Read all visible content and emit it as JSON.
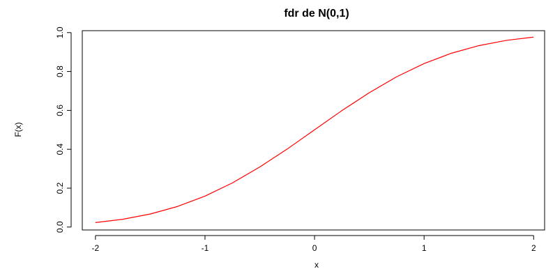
{
  "chart_data": {
    "type": "line",
    "title": "fdr de N(0,1)",
    "xlabel": "x",
    "ylabel": "F(x)",
    "xlim": [
      -2,
      2
    ],
    "ylim": [
      0.0,
      1.0
    ],
    "x_ticks": [
      -2,
      -1,
      0,
      1,
      2
    ],
    "y_ticks": [
      0.0,
      0.2,
      0.4,
      0.6,
      0.8,
      1.0
    ],
    "x_tick_labels": [
      "-2",
      "-1",
      "0",
      "1",
      "2"
    ],
    "y_tick_labels": [
      "0.0",
      "0.2",
      "0.4",
      "0.6",
      "0.8",
      "1.0"
    ],
    "grid": false,
    "colors": {
      "line": "#ff0000",
      "axes": "#000000"
    },
    "series": [
      {
        "x": [
          -2.0,
          -1.75,
          -1.5,
          -1.25,
          -1.0,
          -0.75,
          -0.5,
          -0.25,
          0.0,
          0.25,
          0.5,
          0.75,
          1.0,
          1.25,
          1.5,
          1.75,
          2.0
        ],
        "values": [
          0.023,
          0.04,
          0.067,
          0.106,
          0.159,
          0.227,
          0.309,
          0.401,
          0.5,
          0.599,
          0.691,
          0.773,
          0.841,
          0.894,
          0.933,
          0.96,
          0.977
        ]
      }
    ]
  }
}
